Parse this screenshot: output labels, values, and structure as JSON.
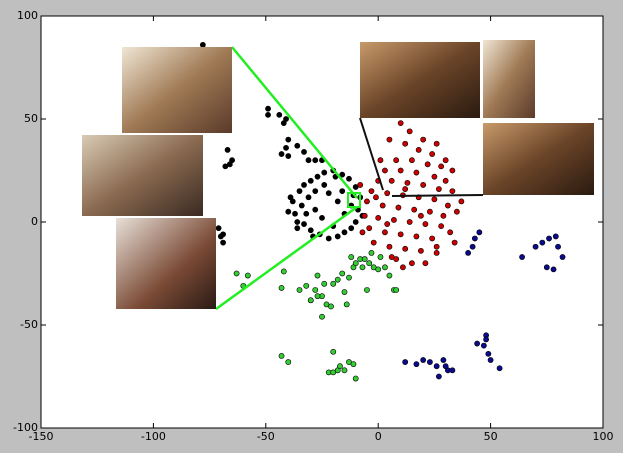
{
  "chart_data": {
    "type": "scatter",
    "xlim": [
      -150,
      100
    ],
    "ylim": [
      -100,
      100
    ],
    "xticks": [
      -150,
      -100,
      -50,
      0,
      50,
      100
    ],
    "yticks": [
      -100,
      -50,
      0,
      50,
      100
    ],
    "series": [
      {
        "color": "#000000",
        "x": [
          -78,
          -49,
          -49,
          -44,
          -42,
          -40,
          -41,
          -43,
          -41,
          -40,
          -67,
          -65,
          -66,
          -68,
          -71,
          -70,
          -69,
          -69,
          -36,
          -33,
          -31,
          -28,
          -25,
          -38,
          -37,
          -36,
          -35,
          -33,
          -30,
          -27,
          -24,
          -20,
          -16,
          -13,
          -10,
          -8,
          -9,
          -10,
          -12,
          -15,
          -18,
          -22,
          -26,
          -30,
          -33,
          -34,
          -31,
          -28,
          -25,
          -22,
          -18,
          -15,
          -20,
          -28,
          -32,
          -12,
          -24,
          -16,
          -40,
          -39,
          -36,
          -19,
          -29,
          -7,
          -11
        ],
        "values": [
          86,
          55,
          52,
          52,
          48,
          40,
          50,
          33,
          36,
          32,
          35,
          30,
          28,
          27,
          -3,
          -7,
          -10,
          -6,
          37,
          34,
          30,
          30,
          30,
          10,
          4,
          0,
          15,
          18,
          20,
          22,
          24,
          25,
          23,
          21,
          17,
          12,
          6,
          0,
          -3,
          -5,
          -7,
          -8,
          -6,
          -4,
          -1,
          8,
          12,
          6,
          2,
          14,
          10,
          4,
          -2,
          15,
          4,
          8,
          18,
          15,
          5,
          12,
          -3,
          22,
          -7,
          3,
          13
        ]
      },
      {
        "color": "#cc0000",
        "x": [
          10,
          5,
          12,
          18,
          24,
          8,
          15,
          22,
          28,
          3,
          10,
          17,
          25,
          30,
          33,
          0,
          6,
          13,
          20,
          27,
          -3,
          4,
          11,
          18,
          25,
          31,
          -5,
          2,
          9,
          16,
          23,
          29,
          -6,
          0,
          7,
          14,
          21,
          28,
          -4,
          3,
          10,
          17,
          24,
          32,
          -2,
          5,
          12,
          19,
          26,
          8,
          15,
          21,
          35,
          37,
          -8,
          1,
          20,
          26,
          14,
          30,
          33,
          -7,
          11,
          6,
          19,
          12,
          4,
          26,
          34,
          -1
        ],
        "values": [
          48,
          40,
          38,
          35,
          33,
          30,
          30,
          28,
          27,
          25,
          25,
          24,
          22,
          20,
          15,
          20,
          20,
          19,
          18,
          16,
          15,
          14,
          13,
          12,
          11,
          8,
          10,
          8,
          7,
          6,
          5,
          3,
          3,
          2,
          1,
          0,
          -1,
          -2,
          -3,
          -5,
          -6,
          -7,
          -8,
          -5,
          -10,
          -12,
          -13,
          -14,
          -15,
          -18,
          -20,
          -20,
          5,
          10,
          18,
          30,
          40,
          38,
          44,
          30,
          25,
          -5,
          -22,
          -17,
          3,
          16,
          -1,
          -12,
          -10,
          12
        ]
      },
      {
        "color": "#33cc33",
        "x": [
          -35,
          -32,
          -30,
          -28,
          -27,
          -25,
          -23,
          -21,
          -24,
          -20,
          -18,
          -16,
          -13,
          -11,
          -8,
          -6,
          -4,
          -2,
          0,
          3,
          5,
          7,
          8,
          -5,
          -15,
          -27,
          -25,
          -43,
          -42,
          -63,
          -58,
          -60,
          -43,
          -40,
          -22,
          -20,
          -18,
          -15,
          -13,
          -17,
          -11,
          -10,
          -20,
          -30,
          -14,
          -10,
          -12,
          -7,
          -3,
          1
        ],
        "values": [
          -33,
          -31,
          -38,
          -33,
          -26,
          -36,
          -40,
          -41,
          -30,
          -30,
          -28,
          -25,
          -27,
          -22,
          -18,
          -18,
          -20,
          -22,
          -23,
          -22,
          -26,
          -33,
          -33,
          -33,
          -34,
          -36,
          -46,
          -32,
          -24,
          -25,
          -26,
          -31,
          -65,
          -68,
          -73,
          -73,
          -72,
          -72,
          -68,
          -70,
          -69,
          -76,
          -63,
          -38,
          -40,
          -20,
          -17,
          -22,
          -15,
          -17
        ]
      },
      {
        "color": "#0a0a8c",
        "x": [
          64,
          70,
          73,
          76,
          79,
          82,
          75,
          78,
          80,
          45,
          43,
          42,
          40,
          12,
          17,
          20,
          23,
          26,
          29,
          31,
          33,
          27,
          44,
          48,
          48,
          49,
          50,
          47,
          54,
          30
        ],
        "values": [
          -17,
          -12,
          -10,
          -8,
          -7,
          -17,
          -22,
          -23,
          -12,
          -5,
          -8,
          -12,
          -15,
          -68,
          -69,
          -67,
          -68,
          -70,
          -67,
          -72,
          -72,
          -75,
          -59,
          -55,
          -57,
          -64,
          -67,
          -60,
          -71,
          -70
        ]
      }
    ]
  }
}
